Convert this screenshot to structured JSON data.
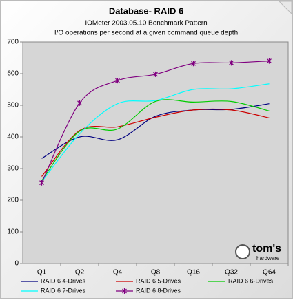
{
  "chart_data": {
    "type": "line",
    "title": "Database- RAID 6",
    "subtitle": [
      "IOMeter 2003.05.10 Benchmark Pattern",
      "I/O operations per second at a given command queue depth"
    ],
    "categories": [
      "Q1",
      "Q2",
      "Q4",
      "Q8",
      "Q16",
      "Q32",
      "Q64"
    ],
    "series": [
      {
        "name": "RAID 6 4-Drives",
        "color": "#000080",
        "values": [
          332,
          400,
          391,
          465,
          485,
          487,
          505
        ]
      },
      {
        "name": "RAID 6 5-Drives",
        "color": "#cc0000",
        "values": [
          275,
          420,
          432,
          462,
          485,
          485,
          460
        ]
      },
      {
        "name": "RAID 6 6-Drives",
        "color": "#00cc00",
        "values": [
          262,
          418,
          425,
          512,
          510,
          512,
          482
        ]
      },
      {
        "name": "RAID 6 7-Drives",
        "color": "#00ffff",
        "values": [
          258,
          410,
          505,
          515,
          550,
          552,
          568
        ]
      },
      {
        "name": "RAID 6 8-Drives",
        "color": "#800080",
        "values": [
          255,
          507,
          578,
          598,
          632,
          634,
          640
        ],
        "marker": "star"
      }
    ],
    "ylim": [
      0,
      700
    ],
    "yticks": [
      0,
      100,
      200,
      300,
      400,
      500,
      600,
      700
    ],
    "grid": false,
    "legend": "bottom",
    "logo": {
      "text": "tom's",
      "subtext": "hardware"
    }
  }
}
